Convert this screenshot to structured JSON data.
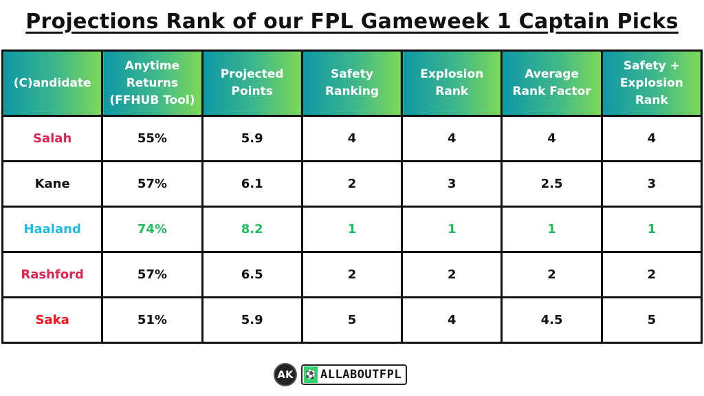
{
  "title": "Projections Rank of our FPL Gameweek 1 Captain Picks",
  "colors": {
    "header_gradient_start": "#0f97a6",
    "header_gradient_end": "#7ed957",
    "highlight_green": "#1cbf5c",
    "salah": "#e0244f",
    "kane": "#111111",
    "haaland": "#1fbce0",
    "rashford": "#e0244f",
    "saka": "#f0141e"
  },
  "chart_data": {
    "type": "table",
    "title": "Projections Rank of our FPL Gameweek 1 Captain Picks",
    "columns": [
      "(C)andidate",
      "Anytime Returns (FFHUB Tool)",
      "Projected Points",
      "Safety Ranking",
      "Explosion Rank",
      "Average Rank Factor",
      "Safety + Explosion Rank"
    ],
    "rows": [
      {
        "name": "Salah",
        "anytime_returns": "55%",
        "projected_points": "5.9",
        "safety_ranking": "4",
        "explosion_rank": "4",
        "average_rank_factor": "4",
        "safety_explosion_rank": "4"
      },
      {
        "name": "Kane",
        "anytime_returns": "57%",
        "projected_points": "6.1",
        "safety_ranking": "2",
        "explosion_rank": "3",
        "average_rank_factor": "2.5",
        "safety_explosion_rank": "3"
      },
      {
        "name": "Haaland",
        "anytime_returns": "74%",
        "projected_points": "8.2",
        "safety_ranking": "1",
        "explosion_rank": "1",
        "average_rank_factor": "1",
        "safety_explosion_rank": "1"
      },
      {
        "name": "Rashford",
        "anytime_returns": "57%",
        "projected_points": "6.5",
        "safety_ranking": "2",
        "explosion_rank": "2",
        "average_rank_factor": "2",
        "safety_explosion_rank": "2"
      },
      {
        "name": "Saka",
        "anytime_returns": "51%",
        "projected_points": "5.9",
        "safety_ranking": "5",
        "explosion_rank": "4",
        "average_rank_factor": "4.5",
        "safety_explosion_rank": "5"
      }
    ],
    "highlighted_row": "Haaland"
  },
  "headers": [
    [
      "(C)andidate"
    ],
    [
      "Anytime",
      "Returns",
      "(FFHUB Tool)"
    ],
    [
      "Projected",
      "Points"
    ],
    [
      "Safety",
      "Ranking"
    ],
    [
      "Explosion",
      "Rank"
    ],
    [
      "Average",
      "Rank Factor"
    ],
    [
      "Safety +",
      "Explosion",
      "Rank"
    ]
  ],
  "rows": [
    [
      "Salah",
      "55%",
      "5.9",
      "4",
      "4",
      "4",
      "4"
    ],
    [
      "Kane",
      "57%",
      "6.1",
      "2",
      "3",
      "2.5",
      "3"
    ],
    [
      "Haaland",
      "74%",
      "8.2",
      "1",
      "1",
      "1",
      "1"
    ],
    [
      "Rashford",
      "57%",
      "6.5",
      "2",
      "2",
      "2",
      "2"
    ],
    [
      "Saka",
      "51%",
      "5.9",
      "5",
      "4",
      "4.5",
      "5"
    ]
  ],
  "footer": {
    "ak_logo": "AK",
    "brand": "ALLABOUTFPL",
    "brand_icon": "football-boot-icon"
  }
}
